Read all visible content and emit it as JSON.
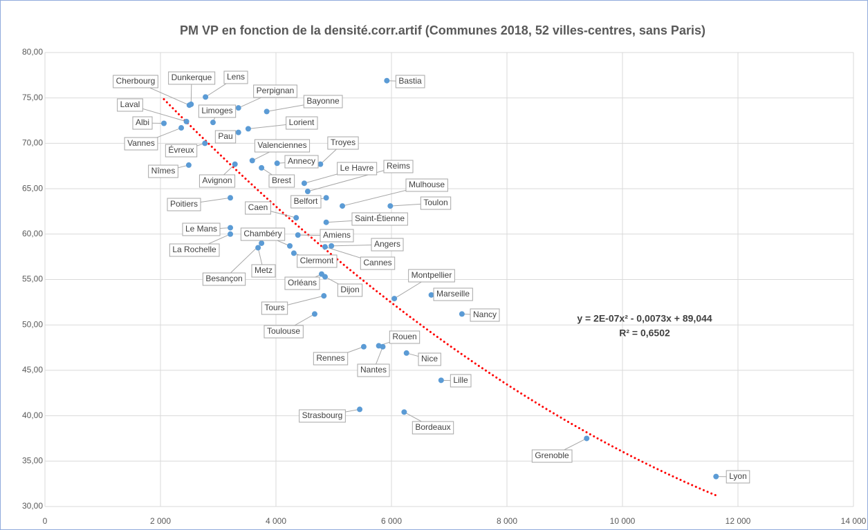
{
  "chart_data": {
    "type": "scatter",
    "title": "PM VP en fonction de la densité.corr.artif (Communes 2018, 52 villes-centres, sans Paris)",
    "labels": [
      "Bastia",
      "Cherbourg",
      "Dunkerque",
      "Lens",
      "Limoges",
      "Perpignan",
      "Bayonne",
      "Laval",
      "Albi",
      "Lorient",
      "Pau",
      "Vannes",
      "Évreux",
      "Valenciennes",
      "Troyes",
      "Annecy",
      "Nîmes",
      "Avignon",
      "Brest",
      "Le Havre",
      "Reims",
      "Belfort",
      "Mulhouse",
      "Toulon",
      "Poitiers",
      "Caen",
      "Saint-Étienne",
      "Le Mans",
      "La Rochelle",
      "Amiens",
      "Chambéry",
      "Angers",
      "Cannes",
      "Clermont",
      "Besançon",
      "Metz",
      "Orléans",
      "Dijon",
      "Montpellier",
      "Marseille",
      "Tours",
      "Nancy",
      "Toulouse",
      "Rouen",
      "Nantes",
      "Rennes",
      "Nice",
      "Lille",
      "Strasbourg",
      "Bordeaux",
      "Grenoble",
      "Lyon"
    ],
    "x": [
      5920,
      2500,
      2530,
      2780,
      2910,
      3350,
      3840,
      2450,
      2060,
      3520,
      3350,
      2360,
      2770,
      3590,
      4770,
      4020,
      2490,
      3290,
      3750,
      4490,
      4550,
      4870,
      5150,
      5980,
      3210,
      4350,
      4870,
      3210,
      3210,
      4380,
      4240,
      4960,
      4850,
      4310,
      3750,
      3690,
      4790,
      4850,
      6050,
      6690,
      4830,
      7220,
      4670,
      5780,
      5850,
      5520,
      6260,
      6860,
      5450,
      6220,
      9380,
      11620
    ],
    "values": [
      76.9,
      74.2,
      74.3,
      75.1,
      72.3,
      73.9,
      73.5,
      72.4,
      72.2,
      71.6,
      71.2,
      71.7,
      70.0,
      68.1,
      67.7,
      67.8,
      67.6,
      67.7,
      67.3,
      65.6,
      64.7,
      64.0,
      63.1,
      63.1,
      64.0,
      61.8,
      61.3,
      60.7,
      60.0,
      59.9,
      58.7,
      58.7,
      58.6,
      57.9,
      59.0,
      58.5,
      55.6,
      55.3,
      52.9,
      53.3,
      53.2,
      51.2,
      51.2,
      47.7,
      47.6,
      47.6,
      46.9,
      43.9,
      40.7,
      40.4,
      37.5,
      33.3
    ],
    "label_colors": [
      "#404040",
      "#ff0000",
      "#404040",
      "#404040",
      "#404040",
      "#404040",
      "#404040",
      "#404040",
      "#404040",
      "#404040",
      "#404040",
      "#404040",
      "#404040",
      "#404040",
      "#404040",
      "#404040",
      "#404040",
      "#404040",
      "#404040",
      "#404040",
      "#ff0000",
      "#404040",
      "#404040",
      "#ff0000",
      "#404040",
      "#404040",
      "#404040",
      "#404040",
      "#404040",
      "#404040",
      "#404040",
      "#404040",
      "#404040",
      "#404040",
      "#404040",
      "#404040",
      "#404040",
      "#404040",
      "#404040",
      "#404040",
      "#404040",
      "#404040",
      "#404040",
      "#404040",
      "#ff0000",
      "#404040",
      "#404040",
      "#404040",
      "#404040",
      "#404040",
      "#ff0000",
      "#ff0000"
    ],
    "color": "#5b9bd5",
    "xlim": [
      0,
      14000
    ],
    "xticks": [
      0,
      {
        "value": 2000,
        "label": "2 000"
      },
      {
        "value": 4000,
        "label": "4 000"
      },
      {
        "value": 6000,
        "label": "6 000"
      },
      {
        "value": 8000,
        "label": "8 000"
      },
      {
        "value": 10000,
        "label": "10 000"
      },
      {
        "value": 12000,
        "label": "12 000"
      },
      {
        "value": 14000,
        "label": "14 000"
      }
    ],
    "ylim": [
      30,
      80
    ],
    "yticks": [
      {
        "value": 30,
        "label": "30,00"
      },
      {
        "value": 35,
        "label": "35,00"
      },
      {
        "value": 40,
        "label": "40,00"
      },
      {
        "value": 45,
        "label": "45,00"
      },
      {
        "value": 50,
        "label": "50,00"
      },
      {
        "value": 55,
        "label": "55,00"
      },
      {
        "value": 60,
        "label": "60,00"
      },
      {
        "value": 65,
        "label": "65,00"
      },
      {
        "value": 70,
        "label": "70,00"
      },
      {
        "value": 75,
        "label": "75,00"
      },
      {
        "value": 80,
        "label": "80,00"
      }
    ],
    "grid": true,
    "trendline": {
      "type": "polynomial",
      "coefficients": [
        89.044,
        -0.0073,
        2e-07
      ],
      "color": "#ff0000"
    },
    "annotations": [
      "y = 2E-07x² - 0,0073x + 89,044",
      "R² = 0,6502"
    ]
  }
}
